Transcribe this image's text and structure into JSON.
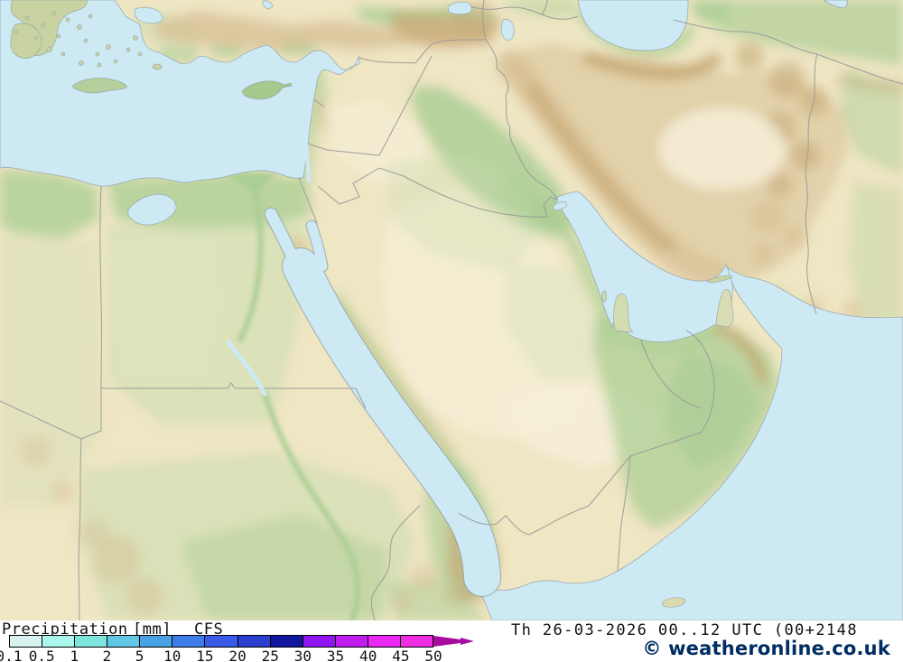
{
  "legend": {
    "title": "Precipitation",
    "units": "[mm]",
    "model": "CFS",
    "ticks": [
      "0.1",
      "0.5",
      "1",
      "2",
      "5",
      "10",
      "15",
      "20",
      "25",
      "30",
      "35",
      "40",
      "45",
      "50"
    ],
    "colors": [
      "#d8f3ef",
      "#abf7ec",
      "#7de5dc",
      "#60c7e5",
      "#49a2e5",
      "#3e7ce9",
      "#3a5ae8",
      "#2a3ed0",
      "#10169e",
      "#9014ee",
      "#c01cee",
      "#ea28f4",
      "#ee2ce2"
    ],
    "arrow_color": "#a60d9e"
  },
  "footer": {
    "timestamp": "Th 26-03-2026 00..12 UTC (00+2148",
    "copyright": "© weatheronline.co.uk",
    "copyright_color": "#002d62"
  },
  "map": {
    "palette": {
      "sea": "#cde9f4",
      "land": "#efe6c4",
      "land-light": "#f6efd9",
      "veg": "#a9cd92",
      "veg-soft": "#c8dcae",
      "mtn": "#d5bc90",
      "mtn-dark": "#c2a26e",
      "border": "#999999",
      "coast": "#8d9da6"
    }
  }
}
